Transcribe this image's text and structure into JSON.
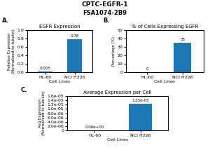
{
  "title": "CPTC-EGFR-1",
  "subtitle": "FSA1074-2B9",
  "chart_data": [
    {
      "type": "bar",
      "title": "EGFR Expression",
      "xlabel": "Cell Lines",
      "ylabel": "Relative Expression\n(Normalized to tubulin)",
      "categories": [
        "HL-60",
        "NCI H226"
      ],
      "values": [
        0.005,
        0.78
      ],
      "ylim": [
        0,
        1.0
      ],
      "yticks": [
        {
          "value": 0,
          "label": "0.0"
        },
        0.2,
        0.4,
        0.6,
        0.8,
        {
          "value": 1,
          "label": "1.0"
        }
      ],
      "data_labels": true,
      "annotation": "A."
    },
    {
      "type": "bar",
      "title": "% of Cells Expressing EGFR",
      "xlabel": "Cell Lines",
      "ylabel": "Percentage (%)",
      "categories": [
        "HL-60",
        "NCI H226"
      ],
      "values": [
        0,
        35
      ],
      "ylim": [
        0,
        50
      ],
      "yticks": [
        0,
        10,
        20,
        30,
        40,
        50
      ],
      "data_labels": true,
      "annotation": "B."
    },
    {
      "type": "bar",
      "title": "Average Expression per Cell",
      "xlabel": "Cell Lines",
      "ylabel": "Avg Expression\n(Normalized to tubulin)",
      "categories": [
        "HL-60",
        "NCI H226"
      ],
      "values": [
        0,
        1.25e-05
      ],
      "value_labels": [
        "0.00e+00",
        "1.25e-05"
      ],
      "ylim": [
        0,
        1.6e-05
      ],
      "yticks": [
        0,
        {
          "value": 2e-06,
          "label": "2.0e-06"
        },
        {
          "value": 4e-06,
          "label": "4.0e-06"
        },
        {
          "value": 6e-06,
          "label": "6.0e-06"
        },
        {
          "value": 8e-06,
          "label": "8.0e-06"
        },
        {
          "value": 1e-05,
          "label": "1.0e-05"
        },
        {
          "value": 1.2e-05,
          "label": "1.2e-05"
        },
        {
          "value": 1.4e-05,
          "label": "1.4e-05"
        },
        {
          "value": 1.6e-05,
          "label": "1.6e-05"
        }
      ],
      "data_labels": true,
      "annotation": "C."
    }
  ]
}
